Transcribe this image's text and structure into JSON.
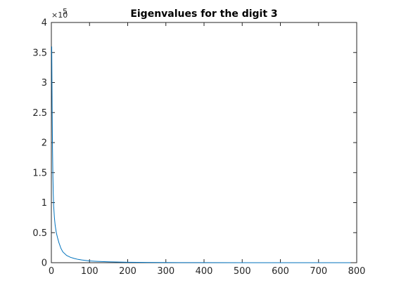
{
  "chart_data": {
    "type": "line",
    "title": "Eigenvalues for the digit 3",
    "xlabel": "",
    "ylabel": "",
    "xlim": [
      0,
      800
    ],
    "ylim": [
      0,
      400000
    ],
    "x_ticks": [
      0,
      100,
      200,
      300,
      400,
      500,
      600,
      700,
      800
    ],
    "y_ticks": [
      0,
      50000,
      100000,
      150000,
      200000,
      250000,
      300000,
      350000,
      400000
    ],
    "x_tick_labels": [
      "0",
      "100",
      "200",
      "300",
      "400",
      "500",
      "600",
      "700",
      "800"
    ],
    "y_tick_labels": [
      "0",
      "0.5",
      "1",
      "1.5",
      "2",
      "2.5",
      "3",
      "3.5",
      "4"
    ],
    "y_exponent_base": "×10",
    "y_exponent_power": "5",
    "grid": false,
    "box": true,
    "series": [
      {
        "color": "#0072BD",
        "x": [
          1,
          2,
          3,
          4,
          5,
          6,
          8,
          10,
          13,
          16,
          20,
          25,
          30,
          40,
          50,
          60,
          70,
          80,
          100,
          120,
          150,
          200,
          250,
          300,
          400,
          500,
          600,
          700,
          784
        ],
        "y": [
          360000,
          260000,
          190000,
          145000,
          115000,
          95000,
          75000,
          62000,
          50000,
          42000,
          33000,
          24000,
          18000,
          12000,
          9000,
          7000,
          5500,
          4500,
          3000,
          2200,
          1400,
          700,
          400,
          250,
          120,
          60,
          30,
          15,
          5
        ]
      }
    ]
  }
}
